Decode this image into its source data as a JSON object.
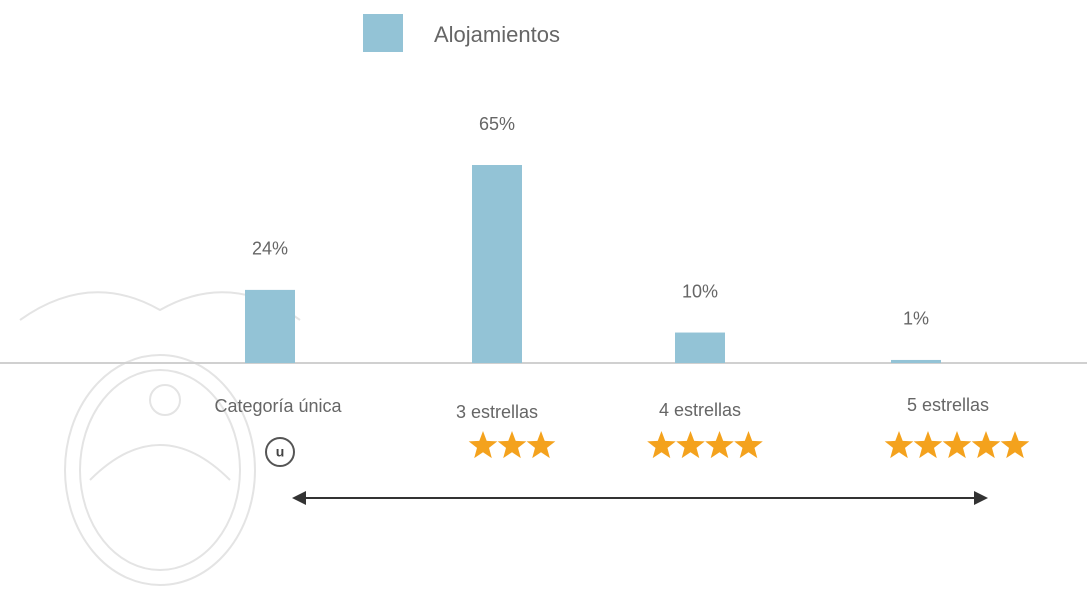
{
  "chart_data": {
    "type": "bar",
    "series": [
      {
        "name": "Alojamientos",
        "color": "#93c3d6",
        "values": [
          24,
          65,
          10,
          1
        ],
        "value_labels": [
          "24%",
          "65%",
          "10%",
          "1%"
        ]
      }
    ],
    "categories": [
      "Categoría única",
      "3 estrellas",
      "4 estrellas",
      "5 estrellas"
    ],
    "annotations": [
      "u"
    ]
  }
}
